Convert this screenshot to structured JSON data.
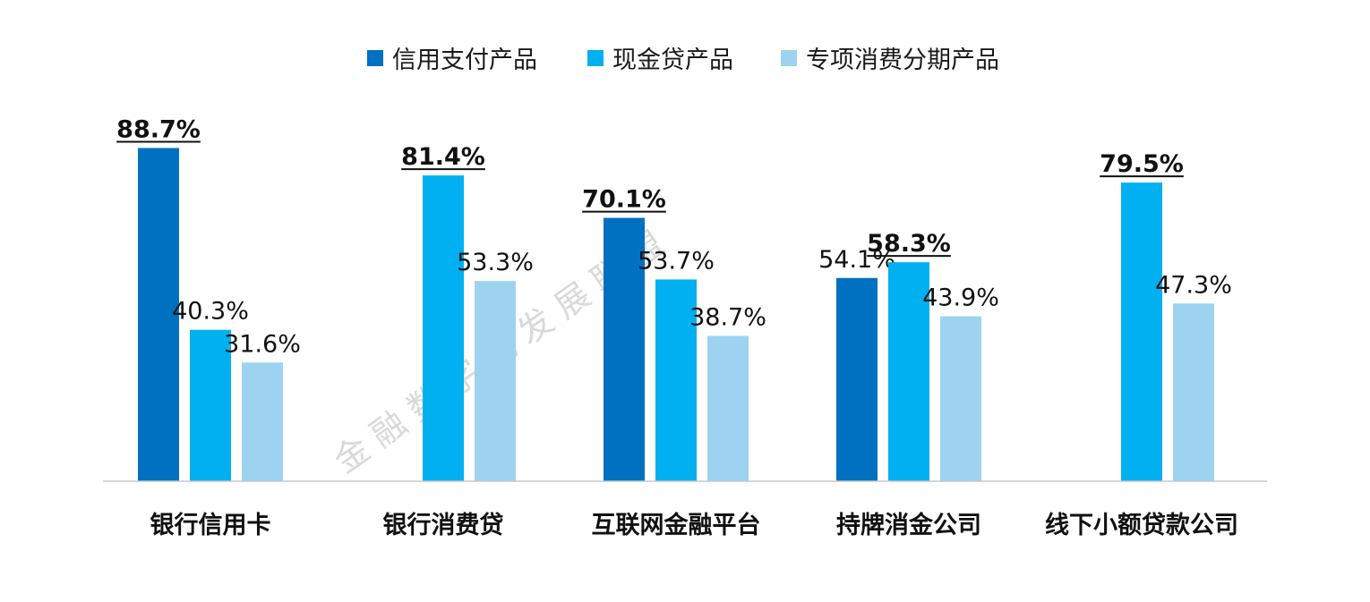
{
  "chart_data": {
    "type": "bar",
    "categories": [
      "银行信用卡",
      "银行消费贷",
      "互联网金融平台",
      "持牌消金公司",
      "线下小额贷款公司"
    ],
    "series": [
      {
        "name": "信用支付产品",
        "color": "#0070C0",
        "values": [
          88.7,
          null,
          70.1,
          54.1,
          null
        ]
      },
      {
        "name": "现金贷产品",
        "color": "#00B0F0",
        "values": [
          40.3,
          81.4,
          53.7,
          58.3,
          79.5
        ]
      },
      {
        "name": "专项消费分期产品",
        "color": "#9DD3F0",
        "values": [
          31.6,
          53.3,
          38.7,
          43.9,
          47.3
        ]
      }
    ],
    "value_suffix": "%",
    "highlight": "max-per-category",
    "ylim": [
      0,
      100
    ],
    "legend_position": "top-center",
    "grid": false,
    "watermark": "金 融 数 字 化 发 展 联 盟"
  }
}
